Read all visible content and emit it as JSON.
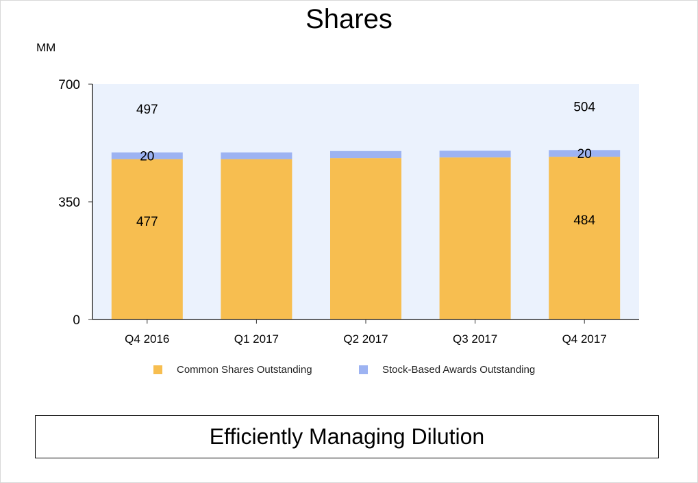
{
  "chart_data": {
    "type": "bar",
    "stacked": true,
    "title": "Shares",
    "ylabel": "MM",
    "ylim": [
      0,
      700
    ],
    "yticks": [
      0,
      350,
      700
    ],
    "categories": [
      "Q4 2016",
      "Q1 2017",
      "Q2 2017",
      "Q3 2017",
      "Q4 2017"
    ],
    "series": [
      {
        "name": "Common Shares Outstanding",
        "color": "#F7BE50",
        "values": [
          477,
          477,
          480,
          482,
          484
        ]
      },
      {
        "name": "Stock-Based Awards Outstanding",
        "color": "#9DB3F2",
        "values": [
          20,
          20,
          21,
          20,
          20
        ]
      }
    ],
    "data_labels": [
      {
        "category_index": 0,
        "series": "Common Shares Outstanding",
        "text": "477"
      },
      {
        "category_index": 0,
        "series": "Stock-Based Awards Outstanding",
        "text": "20"
      },
      {
        "category_index": 0,
        "series": "total",
        "text": "497"
      },
      {
        "category_index": 4,
        "series": "Common Shares Outstanding",
        "text": "484"
      },
      {
        "category_index": 4,
        "series": "Stock-Based Awards Outstanding",
        "text": "20"
      },
      {
        "category_index": 4,
        "series": "total",
        "text": "504"
      }
    ],
    "plot_background": "#EBF2FD",
    "grid": false,
    "legend_position": "bottom"
  },
  "footer": {
    "text": "Efficiently Managing Dilution"
  }
}
